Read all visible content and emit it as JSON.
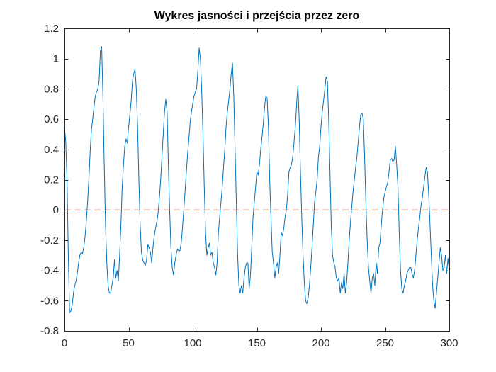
{
  "chart_data": {
    "type": "line",
    "title": "Wykres jasności i przejścia przez zero",
    "xlabel": "",
    "ylabel": "",
    "xlim": [
      0,
      300
    ],
    "ylim": [
      -0.8,
      1.2
    ],
    "x_ticks": [
      0,
      50,
      100,
      150,
      200,
      250,
      300
    ],
    "y_ticks": [
      -0.8,
      -0.6,
      -0.4,
      -0.2,
      0,
      0.2,
      0.4,
      0.6,
      0.8,
      1,
      1.2
    ],
    "y_tick_labels": [
      "-0.8",
      "-0.6",
      "-0.4",
      "-0.2",
      "0",
      "0.2",
      "0.4",
      "0.6",
      "0.8",
      "1",
      "1.2"
    ],
    "x_tick_labels": [
      "0",
      "50",
      "100",
      "150",
      "200",
      "250",
      "300"
    ],
    "grid": false,
    "series": [
      {
        "style": "solid",
        "color": "#0072BD",
        "points": [
          [
            0,
            0.55
          ],
          [
            1,
            0.45
          ],
          [
            2,
            0.2
          ],
          [
            3,
            -0.3
          ],
          [
            4,
            -0.68
          ],
          [
            5,
            -0.67
          ],
          [
            6,
            -0.63
          ],
          [
            7,
            -0.55
          ],
          [
            8,
            -0.5
          ],
          [
            9,
            -0.47
          ],
          [
            10,
            -0.42
          ],
          [
            11,
            -0.35
          ],
          [
            12,
            -0.3
          ],
          [
            13,
            -0.28
          ],
          [
            14,
            -0.29
          ],
          [
            15,
            -0.25
          ],
          [
            16,
            -0.18
          ],
          [
            17,
            -0.08
          ],
          [
            18,
            0.05
          ],
          [
            19,
            0.2
          ],
          [
            20,
            0.38
          ],
          [
            21,
            0.53
          ],
          [
            22,
            0.6
          ],
          [
            23,
            0.68
          ],
          [
            24,
            0.75
          ],
          [
            25,
            0.78
          ],
          [
            26,
            0.8
          ],
          [
            27,
            0.85
          ],
          [
            28,
            1.05
          ],
          [
            29,
            1.08
          ],
          [
            30,
            0.75
          ],
          [
            31,
            0.3
          ],
          [
            32,
            -0.1
          ],
          [
            33,
            -0.35
          ],
          [
            34,
            -0.5
          ],
          [
            35,
            -0.55
          ],
          [
            36,
            -0.55
          ],
          [
            37,
            -0.5
          ],
          [
            38,
            -0.45
          ],
          [
            39,
            -0.33
          ],
          [
            40,
            -0.45
          ],
          [
            41,
            -0.4
          ],
          [
            42,
            -0.47
          ],
          [
            43,
            -0.3
          ],
          [
            44,
            -0.1
          ],
          [
            45,
            0.15
          ],
          [
            46,
            0.3
          ],
          [
            47,
            0.42
          ],
          [
            48,
            0.47
          ],
          [
            49,
            0.44
          ],
          [
            50,
            0.55
          ],
          [
            51,
            0.63
          ],
          [
            52,
            0.72
          ],
          [
            53,
            0.85
          ],
          [
            54,
            0.9
          ],
          [
            55,
            0.93
          ],
          [
            56,
            0.8
          ],
          [
            57,
            0.55
          ],
          [
            58,
            0.2
          ],
          [
            59,
            -0.1
          ],
          [
            60,
            -0.28
          ],
          [
            61,
            -0.33
          ],
          [
            62,
            -0.35
          ],
          [
            63,
            -0.37
          ],
          [
            64,
            -0.33
          ],
          [
            65,
            -0.23
          ],
          [
            66,
            -0.25
          ],
          [
            67,
            -0.28
          ],
          [
            68,
            -0.35
          ],
          [
            69,
            -0.25
          ],
          [
            70,
            -0.17
          ],
          [
            71,
            -0.12
          ],
          [
            72,
            -0.08
          ],
          [
            73,
            -0.02
          ],
          [
            74,
            0.08
          ],
          [
            75,
            0.2
          ],
          [
            76,
            0.35
          ],
          [
            77,
            0.5
          ],
          [
            78,
            0.65
          ],
          [
            79,
            0.73
          ],
          [
            80,
            0.65
          ],
          [
            81,
            0.3
          ],
          [
            82,
            0.0
          ],
          [
            83,
            -0.25
          ],
          [
            84,
            -0.38
          ],
          [
            85,
            -0.43
          ],
          [
            86,
            -0.35
          ],
          [
            87,
            -0.3
          ],
          [
            88,
            -0.26
          ],
          [
            89,
            -0.27
          ],
          [
            90,
            -0.27
          ],
          [
            91,
            -0.22
          ],
          [
            92,
            -0.12
          ],
          [
            93,
            0.0
          ],
          [
            94,
            0.12
          ],
          [
            95,
            0.25
          ],
          [
            96,
            0.37
          ],
          [
            97,
            0.47
          ],
          [
            98,
            0.58
          ],
          [
            99,
            0.65
          ],
          [
            100,
            0.7
          ],
          [
            101,
            0.75
          ],
          [
            102,
            0.78
          ],
          [
            103,
            0.8
          ],
          [
            104,
            0.92
          ],
          [
            105,
            1.07
          ],
          [
            106,
            1.0
          ],
          [
            107,
            0.78
          ],
          [
            108,
            0.5
          ],
          [
            109,
            0.15
          ],
          [
            110,
            -0.15
          ],
          [
            111,
            -0.3
          ],
          [
            112,
            -0.25
          ],
          [
            113,
            -0.22
          ],
          [
            114,
            -0.3
          ],
          [
            115,
            -0.28
          ],
          [
            116,
            -0.35
          ],
          [
            117,
            -0.38
          ],
          [
            118,
            -0.43
          ],
          [
            119,
            -0.35
          ],
          [
            120,
            -0.15
          ],
          [
            121,
            -0.05
          ],
          [
            122,
            0.05
          ],
          [
            123,
            0.15
          ],
          [
            124,
            0.28
          ],
          [
            125,
            0.4
          ],
          [
            126,
            0.55
          ],
          [
            127,
            0.65
          ],
          [
            128,
            0.72
          ],
          [
            129,
            0.8
          ],
          [
            130,
            0.9
          ],
          [
            131,
            0.97
          ],
          [
            132,
            0.75
          ],
          [
            133,
            0.4
          ],
          [
            134,
            0.05
          ],
          [
            135,
            -0.3
          ],
          [
            136,
            -0.5
          ],
          [
            137,
            -0.55
          ],
          [
            138,
            -0.5
          ],
          [
            139,
            -0.55
          ],
          [
            140,
            -0.45
          ],
          [
            141,
            -0.38
          ],
          [
            142,
            -0.35
          ],
          [
            143,
            -0.35
          ],
          [
            144,
            -0.52
          ],
          [
            145,
            -0.43
          ],
          [
            146,
            -0.25
          ],
          [
            147,
            -0.05
          ],
          [
            148,
            0.05
          ],
          [
            149,
            0.15
          ],
          [
            150,
            0.25
          ],
          [
            151,
            0.23
          ],
          [
            152,
            0.3
          ],
          [
            153,
            0.4
          ],
          [
            154,
            0.48
          ],
          [
            155,
            0.57
          ],
          [
            156,
            0.68
          ],
          [
            157,
            0.75
          ],
          [
            158,
            0.74
          ],
          [
            159,
            0.55
          ],
          [
            160,
            0.2
          ],
          [
            161,
            -0.05
          ],
          [
            162,
            -0.28
          ],
          [
            163,
            -0.35
          ],
          [
            164,
            -0.45
          ],
          [
            165,
            -0.38
          ],
          [
            166,
            -0.35
          ],
          [
            167,
            -0.42
          ],
          [
            168,
            -0.3
          ],
          [
            169,
            -0.15
          ],
          [
            170,
            -0.17
          ],
          [
            171,
            -0.12
          ],
          [
            172,
            -0.05
          ],
          [
            173,
            0.0
          ],
          [
            174,
            0.1
          ],
          [
            175,
            0.25
          ],
          [
            176,
            0.28
          ],
          [
            177,
            0.3
          ],
          [
            178,
            0.35
          ],
          [
            179,
            0.45
          ],
          [
            180,
            0.55
          ],
          [
            181,
            0.7
          ],
          [
            182,
            0.82
          ],
          [
            183,
            0.6
          ],
          [
            184,
            0.25
          ],
          [
            185,
            -0.05
          ],
          [
            186,
            -0.3
          ],
          [
            187,
            -0.48
          ],
          [
            188,
            -0.6
          ],
          [
            189,
            -0.62
          ],
          [
            190,
            -0.58
          ],
          [
            191,
            -0.5
          ],
          [
            192,
            -0.38
          ],
          [
            193,
            -0.25
          ],
          [
            194,
            -0.1
          ],
          [
            195,
            0.05
          ],
          [
            196,
            0.12
          ],
          [
            197,
            0.2
          ],
          [
            198,
            0.35
          ],
          [
            199,
            0.42
          ],
          [
            200,
            0.55
          ],
          [
            201,
            0.65
          ],
          [
            202,
            0.72
          ],
          [
            203,
            0.8
          ],
          [
            204,
            0.88
          ],
          [
            205,
            0.85
          ],
          [
            206,
            0.6
          ],
          [
            207,
            0.25
          ],
          [
            208,
            -0.1
          ],
          [
            209,
            -0.3
          ],
          [
            210,
            -0.35
          ],
          [
            211,
            -0.38
          ],
          [
            212,
            -0.45
          ],
          [
            213,
            -0.47
          ],
          [
            214,
            -0.45
          ],
          [
            215,
            -0.55
          ],
          [
            216,
            -0.48
          ],
          [
            217,
            -0.52
          ],
          [
            218,
            -0.42
          ],
          [
            219,
            -0.55
          ],
          [
            220,
            -0.48
          ],
          [
            221,
            -0.35
          ],
          [
            222,
            -0.2
          ],
          [
            223,
            -0.08
          ],
          [
            224,
            0.02
          ],
          [
            225,
            0.12
          ],
          [
            226,
            0.2
          ],
          [
            227,
            0.28
          ],
          [
            228,
            0.35
          ],
          [
            229,
            0.45
          ],
          [
            230,
            0.55
          ],
          [
            231,
            0.63
          ],
          [
            232,
            0.64
          ],
          [
            233,
            0.6
          ],
          [
            234,
            0.35
          ],
          [
            235,
            0.05
          ],
          [
            236,
            -0.2
          ],
          [
            237,
            -0.38
          ],
          [
            238,
            -0.47
          ],
          [
            239,
            -0.55
          ],
          [
            240,
            -0.45
          ],
          [
            241,
            -0.42
          ],
          [
            242,
            -0.5
          ],
          [
            243,
            -0.35
          ],
          [
            244,
            -0.42
          ],
          [
            245,
            -0.25
          ],
          [
            246,
            -0.22
          ],
          [
            247,
            -0.1
          ],
          [
            248,
            0.0
          ],
          [
            249,
            0.08
          ],
          [
            250,
            0.12
          ],
          [
            251,
            0.15
          ],
          [
            252,
            0.18
          ],
          [
            253,
            0.25
          ],
          [
            254,
            0.33
          ],
          [
            255,
            0.34
          ],
          [
            256,
            0.32
          ],
          [
            257,
            0.33
          ],
          [
            258,
            0.42
          ],
          [
            259,
            0.3
          ],
          [
            260,
            0.15
          ],
          [
            261,
            -0.15
          ],
          [
            262,
            -0.4
          ],
          [
            263,
            -0.52
          ],
          [
            264,
            -0.55
          ],
          [
            265,
            -0.5
          ],
          [
            266,
            -0.47
          ],
          [
            267,
            -0.42
          ],
          [
            268,
            -0.4
          ],
          [
            269,
            -0.38
          ],
          [
            270,
            -0.38
          ],
          [
            271,
            -0.42
          ],
          [
            272,
            -0.45
          ],
          [
            273,
            -0.4
          ],
          [
            274,
            -0.3
          ],
          [
            275,
            -0.2
          ],
          [
            276,
            -0.12
          ],
          [
            277,
            -0.05
          ],
          [
            278,
            0.03
          ],
          [
            279,
            0.08
          ],
          [
            280,
            0.15
          ],
          [
            281,
            0.22
          ],
          [
            282,
            0.28
          ],
          [
            283,
            0.25
          ],
          [
            284,
            0.1
          ],
          [
            285,
            -0.1
          ],
          [
            286,
            -0.3
          ],
          [
            287,
            -0.5
          ],
          [
            288,
            -0.6
          ],
          [
            289,
            -0.65
          ],
          [
            290,
            -0.55
          ],
          [
            291,
            -0.45
          ],
          [
            292,
            -0.35
          ],
          [
            293,
            -0.25
          ],
          [
            294,
            -0.3
          ],
          [
            295,
            -0.4
          ],
          [
            296,
            -0.38
          ],
          [
            297,
            -0.3
          ],
          [
            298,
            -0.42
          ],
          [
            299,
            -0.32
          ],
          [
            300,
            -0.4
          ]
        ]
      },
      {
        "style": "dashed",
        "color": "#D95319",
        "points": [
          [
            0,
            0
          ],
          [
            300,
            0
          ]
        ]
      }
    ]
  }
}
